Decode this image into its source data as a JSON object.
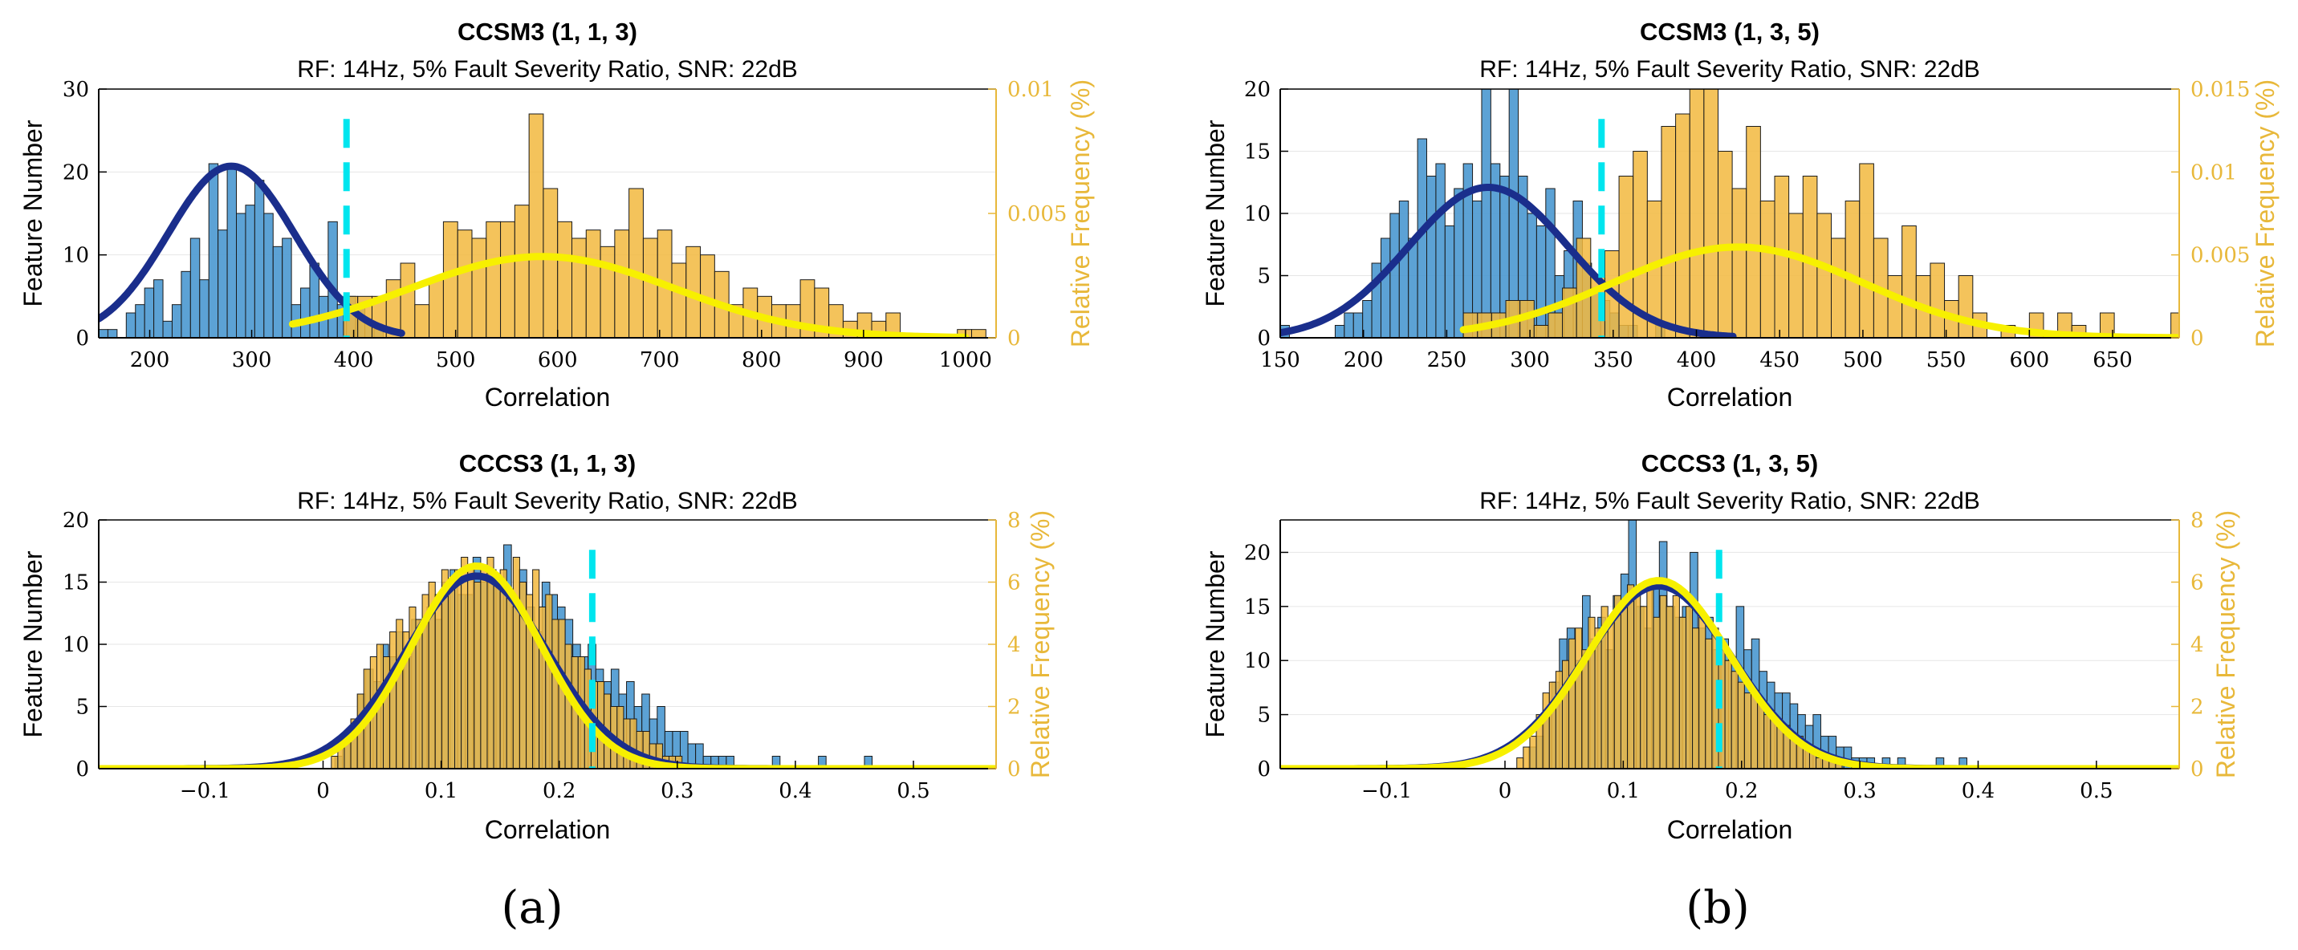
{
  "panel_labels": [
    "(a)",
    "(b)"
  ],
  "chart_data": [
    {
      "type": "bar",
      "title": "CCSM3 (1, 1, 3)",
      "subtitle": "RF: 14Hz, 5% Fault Severity Ratio, SNR: 22dB",
      "xlabel": "Correlation",
      "ylabel": "Feature Number",
      "ylabel_right": "Relative Frequency (%)",
      "xlim": [
        150,
        1030
      ],
      "ylim": [
        0,
        30
      ],
      "ylim_right": [
        0,
        0.01
      ],
      "xticks": [
        200,
        300,
        400,
        500,
        600,
        700,
        800,
        900,
        1000
      ],
      "xtick_labels": [
        "200",
        "300",
        "400",
        "500",
        "600",
        "700",
        "800",
        "900",
        "1000"
      ],
      "yticks": [
        0,
        10,
        20,
        30
      ],
      "ytick_labels": [
        "0",
        "10",
        "20",
        "30"
      ],
      "yticks_right": [
        0,
        0.005,
        0.01
      ],
      "ytick_labels_right": [
        "0",
        "0.005",
        "0.01"
      ],
      "colors": {
        "class1_bars": "#4A98D0",
        "class2_bars": "#F2B93E",
        "class1_fit": "#1A2E8C",
        "class2_fit": "#F7F000",
        "threshold": "#00E5EE",
        "right_axis": "#E8B83A"
      },
      "series": [
        {
          "name": "Healthy histogram",
          "bin_start": 150,
          "bin_width": 9,
          "values": [
            1,
            1,
            0,
            3,
            4,
            6,
            7,
            2,
            4,
            8,
            12,
            7,
            21,
            13,
            21,
            15,
            16,
            19,
            15,
            11,
            12,
            4,
            6,
            9,
            5,
            14,
            4,
            5,
            4,
            2,
            1
          ]
        },
        {
          "name": "Faulty histogram",
          "bin_start": 390,
          "bin_width": 14,
          "values": [
            5,
            5,
            5,
            7,
            9,
            4,
            7,
            14,
            13,
            12,
            14,
            14,
            16,
            27,
            18,
            14,
            12,
            13,
            11,
            13,
            18,
            12,
            13,
            9,
            11,
            10,
            8,
            4,
            6,
            5,
            4,
            4,
            7,
            6,
            4,
            2,
            3,
            2,
            3,
            0,
            0,
            0,
            0,
            1,
            1,
            0,
            0,
            0,
            0,
            0,
            0,
            0,
            0,
            0,
            1,
            0,
            0,
            3
          ]
        },
        {
          "name": "Healthy Gaussian fit",
          "mean": 280,
          "std": 62,
          "peak": 20.7,
          "x_range": [
            150,
            447
          ]
        },
        {
          "name": "Faulty Gaussian fit",
          "mean": 585,
          "std": 130,
          "peak": 9.8,
          "x_range": [
            340,
            1000
          ]
        }
      ],
      "threshold": 393
    },
    {
      "type": "bar",
      "title": "CCSM3 (1, 3, 5)",
      "subtitle": "RF: 14Hz, 5% Fault Severity Ratio, SNR: 22dB",
      "xlabel": "Correlation",
      "ylabel": "Feature Number",
      "ylabel_right": "Relative Frequency (%)",
      "xlim": [
        150,
        690
      ],
      "ylim": [
        0,
        20
      ],
      "ylim_right": [
        0,
        0.015
      ],
      "xticks": [
        150,
        200,
        250,
        300,
        350,
        400,
        450,
        500,
        550,
        600,
        650
      ],
      "xtick_labels": [
        "150",
        "200",
        "250",
        "300",
        "350",
        "400",
        "450",
        "500",
        "550",
        "600",
        "650"
      ],
      "yticks": [
        0,
        5,
        10,
        15,
        20
      ],
      "ytick_labels": [
        "0",
        "5",
        "10",
        "15",
        "20"
      ],
      "yticks_right": [
        0,
        0.005,
        0.01,
        0.015
      ],
      "ytick_labels_right": [
        "0",
        "0.005",
        "0.01",
        "0.015"
      ],
      "colors": {
        "class1_bars": "#4A98D0",
        "class2_bars": "#F2B93E",
        "class1_fit": "#1A2E8C",
        "class2_fit": "#F7F000",
        "threshold": "#00E5EE",
        "right_axis": "#E8B83A"
      },
      "series": [
        {
          "name": "Healthy histogram",
          "bin_start": 150,
          "bin_width": 5.5,
          "values": [
            1,
            0,
            0,
            0,
            0,
            0,
            1,
            2,
            2,
            3,
            6,
            8,
            10,
            11,
            8,
            16,
            13,
            14,
            9,
            12,
            14,
            11,
            20,
            14,
            13,
            20,
            13,
            10,
            9,
            12,
            5,
            7,
            11,
            6,
            4,
            3,
            2,
            1,
            1,
            0,
            0,
            1,
            0,
            0,
            0,
            0
          ]
        },
        {
          "name": "Faulty histogram",
          "bin_start": 260,
          "bin_width": 8.5,
          "values": [
            2,
            2,
            2,
            3,
            3,
            1,
            2,
            4,
            8,
            5,
            7,
            13,
            15,
            11,
            17,
            18,
            20,
            20,
            15,
            12,
            17,
            11,
            13,
            10,
            13,
            10,
            8,
            11,
            14,
            8,
            5,
            9,
            5,
            6,
            3,
            5,
            2,
            0,
            1,
            0,
            2,
            0,
            2,
            1,
            0,
            2,
            0,
            0,
            0,
            0,
            2
          ]
        },
        {
          "name": "Healthy Gaussian fit",
          "mean": 275,
          "std": 48,
          "peak": 12.1,
          "x_range": [
            150,
            422
          ]
        },
        {
          "name": "Faulty Gaussian fit",
          "mean": 425,
          "std": 75,
          "peak": 7.3,
          "x_range": [
            260,
            690
          ]
        }
      ],
      "threshold": 343
    },
    {
      "type": "bar",
      "title": "CCCS3 (1, 1, 3)",
      "subtitle": "RF: 14Hz, 5% Fault Severity Ratio, SNR: 22dB",
      "xlabel": "Correlation",
      "ylabel": "Feature Number",
      "ylabel_right": "Relative Frequency (%)",
      "xlim": [
        -0.19,
        0.57
      ],
      "ylim": [
        0,
        20
      ],
      "ylim_right": [
        0,
        8
      ],
      "xticks": [
        -0.1,
        0,
        0.1,
        0.2,
        0.3,
        0.4,
        0.5
      ],
      "xtick_labels": [
        "−0.1",
        "0",
        "0.1",
        "0.2",
        "0.3",
        "0.4",
        "0.5"
      ],
      "yticks": [
        0,
        5,
        10,
        15,
        20
      ],
      "ytick_labels": [
        "0",
        "5",
        "10",
        "15",
        "20"
      ],
      "yticks_right": [
        0,
        2,
        4,
        6,
        8
      ],
      "ytick_labels_right": [
        "0",
        "2",
        "4",
        "6",
        "8"
      ],
      "colors": {
        "class1_bars": "#4A98D0",
        "class2_bars": "#F2B93E",
        "class1_fit": "#1A2E8C",
        "class2_fit": "#F7F000",
        "threshold": "#00E5EE",
        "right_axis": "#E8B83A"
      },
      "series": [
        {
          "name": "Healthy histogram",
          "bin_start": 0.01,
          "bin_width": 0.0065,
          "values": [
            1,
            2,
            3,
            6,
            8,
            7,
            10,
            9,
            11,
            9,
            12,
            12,
            13,
            12,
            15,
            16,
            14,
            14,
            17,
            15,
            16,
            15,
            18,
            13,
            16,
            13,
            11,
            15,
            14,
            13,
            12,
            10,
            9,
            10,
            8,
            7,
            8,
            6,
            7,
            5,
            6,
            4,
            5,
            3,
            3,
            3,
            2,
            2,
            1,
            1,
            1,
            1,
            0,
            0,
            0,
            0,
            0,
            1,
            0,
            0,
            0,
            0,
            0,
            1,
            0,
            0,
            0,
            0,
            0,
            1
          ]
        },
        {
          "name": "Faulty histogram",
          "bin_start": 0.007,
          "bin_width": 0.0055,
          "values": [
            1,
            2,
            3,
            4,
            6,
            8,
            9,
            10,
            9,
            11,
            12,
            11,
            13,
            12,
            14,
            15,
            14,
            16,
            15,
            16,
            17,
            16,
            15,
            16,
            17,
            15,
            16,
            14,
            17,
            15,
            14,
            16,
            13,
            14,
            12,
            12,
            10,
            9,
            9,
            8,
            7,
            7,
            6,
            5,
            5,
            4,
            4,
            3,
            3,
            2,
            2,
            1,
            1,
            1
          ]
        },
        {
          "name": "Healthy Gaussian fit",
          "mean": 0.13,
          "std": 0.06,
          "peak": 15.5,
          "x_range": [
            -0.19,
            0.57
          ]
        },
        {
          "name": "Faulty Gaussian fit",
          "mean": 0.13,
          "std": 0.055,
          "peak": 16.3,
          "x_range": [
            -0.19,
            0.57
          ]
        }
      ],
      "threshold": 0.228
    },
    {
      "type": "bar",
      "title": "CCCS3 (1, 3, 5)",
      "subtitle": "RF: 14Hz, 5% Fault Severity Ratio, SNR: 22dB",
      "xlabel": "Correlation",
      "ylabel": "Feature Number",
      "ylabel_right": "Relative Frequency (%)",
      "xlim": [
        -0.19,
        0.57
      ],
      "ylim": [
        0,
        23
      ],
      "ylim_right": [
        0,
        8
      ],
      "xticks": [
        -0.1,
        0,
        0.1,
        0.2,
        0.3,
        0.4,
        0.5
      ],
      "xtick_labels": [
        "−0.1",
        "0",
        "0.1",
        "0.2",
        "0.3",
        "0.4",
        "0.5"
      ],
      "yticks": [
        0,
        5,
        10,
        15,
        20
      ],
      "ytick_labels": [
        "0",
        "5",
        "10",
        "15",
        "20"
      ],
      "yticks_right": [
        0,
        2,
        4,
        6,
        8
      ],
      "ytick_labels_right": [
        "0",
        "2",
        "4",
        "6",
        "8"
      ],
      "colors": {
        "class1_bars": "#4A98D0",
        "class2_bars": "#F2B93E",
        "class1_fit": "#1A2E8C",
        "class2_fit": "#F7F000",
        "threshold": "#00E5EE",
        "right_axis": "#E8B83A"
      },
      "series": [
        {
          "name": "Healthy histogram",
          "bin_start": 0.02,
          "bin_width": 0.0065,
          "values": [
            2,
            3,
            5,
            8,
            12,
            13,
            10,
            16,
            12,
            14,
            11,
            16,
            18,
            23,
            15,
            13,
            17,
            21,
            15,
            14,
            15,
            20,
            13,
            14,
            11,
            12,
            10,
            15,
            11,
            12,
            9,
            8,
            7,
            7,
            6,
            5,
            4,
            5,
            3,
            3,
            2,
            2,
            1,
            1,
            1,
            0,
            1,
            0,
            1,
            0,
            0,
            0,
            0,
            1,
            0,
            0,
            1
          ]
        },
        {
          "name": "Faulty histogram",
          "bin_start": 0.01,
          "bin_width": 0.0055,
          "values": [
            1,
            2,
            3,
            5,
            7,
            8,
            9,
            10,
            12,
            13,
            11,
            14,
            13,
            15,
            14,
            16,
            15,
            17,
            16,
            15,
            17,
            14,
            16,
            15,
            16,
            14,
            15,
            13,
            14,
            12,
            13,
            11,
            10,
            9,
            8,
            7,
            7,
            6,
            5,
            5,
            4,
            4,
            3,
            3,
            2,
            2,
            1,
            1,
            1,
            1
          ]
        },
        {
          "name": "Healthy Gaussian fit",
          "mean": 0.13,
          "std": 0.062,
          "peak": 16.9,
          "x_range": [
            -0.19,
            0.57
          ]
        },
        {
          "name": "Faulty Gaussian fit",
          "mean": 0.13,
          "std": 0.06,
          "peak": 17.4,
          "x_range": [
            -0.19,
            0.57
          ]
        }
      ],
      "threshold": 0.181
    }
  ]
}
